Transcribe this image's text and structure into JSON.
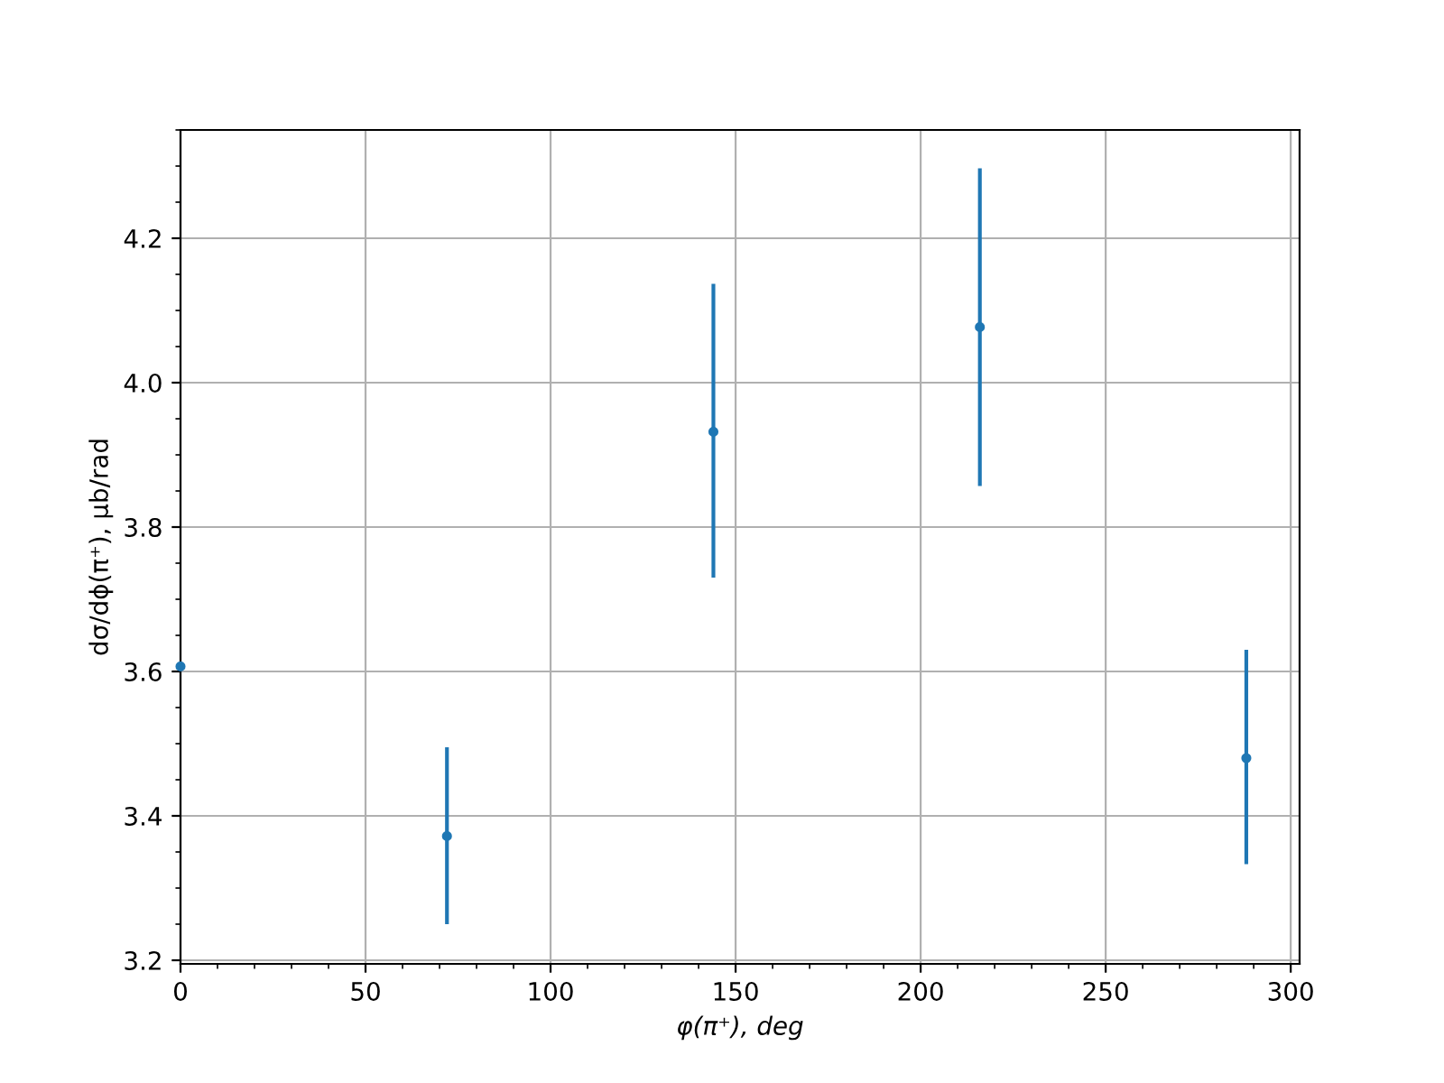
{
  "chart_data": {
    "type": "scatter",
    "xlabel": "φ(π⁺), deg",
    "ylabel": "dσ/dϕ(π⁺), μb/rad",
    "x": [
      0,
      72,
      144,
      216,
      288
    ],
    "values": [
      3.607,
      3.372,
      3.932,
      4.077,
      3.48
    ],
    "errors": [
      null,
      [
        3.25,
        3.495
      ],
      [
        3.73,
        4.137
      ],
      [
        3.857,
        4.297
      ],
      [
        3.333,
        3.63
      ]
    ],
    "color": "#1f77b4",
    "marker": "circle",
    "grid": true,
    "xlim": [
      0,
      302.4
    ],
    "ylim": [
      3.195,
      4.35
    ],
    "xticks": [
      0,
      50,
      100,
      150,
      200,
      250,
      300
    ],
    "yticks": [
      3.2,
      3.4,
      3.6,
      3.8,
      {
        "value": 4,
        "label": "4.0"
      },
      4.2
    ]
  }
}
